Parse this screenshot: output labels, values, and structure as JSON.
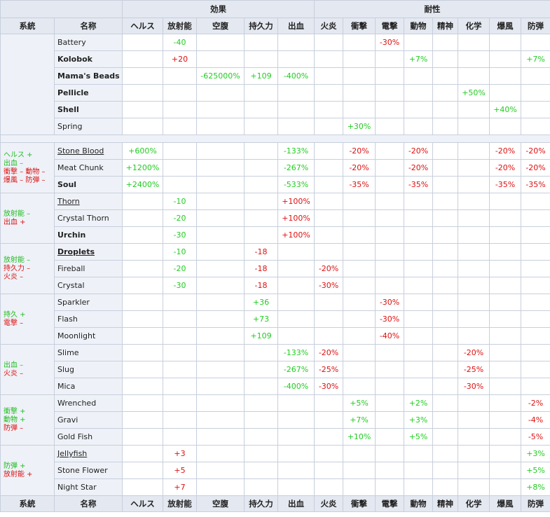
{
  "headers": {
    "effect_group": "効果",
    "resist_group": "耐性",
    "columns": [
      "系統",
      "名称",
      "ヘルス",
      "放射能",
      "空腹",
      "持久力",
      "出血",
      "火炎",
      "衝撃",
      "電撃",
      "動物",
      "精神",
      "化学",
      "爆風",
      "防弾"
    ]
  },
  "groups": [
    {
      "label": [],
      "rows": [
        {
          "name": "Battery",
          "bold": false,
          "underline": false,
          "vals": [
            "",
            "-40",
            "",
            "",
            "",
            "",
            "",
            "-30%",
            "",
            "",
            "",
            "",
            ""
          ]
        },
        {
          "name": "Kolobok",
          "bold": true,
          "underline": false,
          "vals": [
            "",
            "+20",
            "",
            "",
            "",
            "",
            "",
            "",
            "+7%",
            "",
            "",
            "",
            "+7%"
          ]
        },
        {
          "name": "Mama's Beads",
          "bold": true,
          "underline": false,
          "vals": [
            "",
            "",
            "-625000%",
            "+109",
            "-400%",
            "",
            "",
            "",
            "",
            "",
            "",
            "",
            ""
          ]
        },
        {
          "name": "Pellicle",
          "bold": true,
          "underline": false,
          "vals": [
            "",
            "",
            "",
            "",
            "",
            "",
            "",
            "",
            "",
            "",
            "+50%",
            "",
            ""
          ]
        },
        {
          "name": "Shell",
          "bold": true,
          "underline": false,
          "vals": [
            "",
            "",
            "",
            "",
            "",
            "",
            "",
            "",
            "",
            "",
            "",
            "+40%",
            ""
          ]
        },
        {
          "name": "Spring",
          "bold": false,
          "underline": false,
          "vals": [
            "",
            "",
            "",
            "",
            "",
            "",
            "+30%",
            "",
            "",
            "",
            "",
            "",
            ""
          ]
        }
      ]
    },
    {
      "spacer": true
    },
    {
      "label": [
        {
          "t": "ヘルス +",
          "c": "g"
        },
        {
          "t": "出血 –",
          "c": "g"
        },
        {
          "t": "衝撃 – 動物 –",
          "c": "r"
        },
        {
          "t": "爆風 – 防弾 –",
          "c": "r"
        }
      ],
      "rows": [
        {
          "name": "Stone Blood",
          "bold": false,
          "underline": true,
          "vals": [
            "+600%",
            "",
            "",
            "",
            "-133%",
            "",
            "-20%",
            "",
            "-20%",
            "",
            "",
            "-20%",
            "-20%"
          ]
        },
        {
          "name": "Meat Chunk",
          "bold": false,
          "underline": false,
          "vals": [
            "+1200%",
            "",
            "",
            "",
            "-267%",
            "",
            "-20%",
            "",
            "-20%",
            "",
            "",
            "-20%",
            "-20%"
          ]
        },
        {
          "name": "Soul",
          "bold": true,
          "underline": false,
          "vals": [
            "+2400%",
            "",
            "",
            "",
            "-533%",
            "",
            "-35%",
            "",
            "-35%",
            "",
            "",
            "-35%",
            "-35%"
          ]
        }
      ]
    },
    {
      "label": [
        {
          "t": "放射能 –",
          "c": "g"
        },
        {
          "t": "出血 +",
          "c": "r"
        }
      ],
      "rows": [
        {
          "name": "Thorn",
          "bold": false,
          "underline": true,
          "vals": [
            "",
            "-10",
            "",
            "",
            "+100%",
            "",
            "",
            "",
            "",
            "",
            "",
            "",
            ""
          ]
        },
        {
          "name": "Crystal Thorn",
          "bold": false,
          "underline": false,
          "vals": [
            "",
            "-20",
            "",
            "",
            "+100%",
            "",
            "",
            "",
            "",
            "",
            "",
            "",
            ""
          ]
        },
        {
          "name": "Urchin",
          "bold": true,
          "underline": false,
          "vals": [
            "",
            "-30",
            "",
            "",
            "+100%",
            "",
            "",
            "",
            "",
            "",
            "",
            "",
            ""
          ]
        }
      ]
    },
    {
      "label": [
        {
          "t": "放射能 –",
          "c": "g"
        },
        {
          "t": "持久力 –",
          "c": "r"
        },
        {
          "t": "火炎 –",
          "c": "r"
        }
      ],
      "rows": [
        {
          "name": "Droplets",
          "bold": true,
          "underline": true,
          "vals": [
            "",
            "-10",
            "",
            "-18",
            "",
            "",
            "",
            "",
            "",
            "",
            "",
            "",
            ""
          ]
        },
        {
          "name": "Fireball",
          "bold": false,
          "underline": false,
          "vals": [
            "",
            "-20",
            "",
            "-18",
            "",
            "-20%",
            "",
            "",
            "",
            "",
            "",
            "",
            ""
          ]
        },
        {
          "name": "Crystal",
          "bold": false,
          "underline": false,
          "vals": [
            "",
            "-30",
            "",
            "-18",
            "",
            "-30%",
            "",
            "",
            "",
            "",
            "",
            "",
            ""
          ]
        }
      ]
    },
    {
      "label": [
        {
          "t": "持久 +",
          "c": "g"
        },
        {
          "t": "電撃 –",
          "c": "r"
        }
      ],
      "rows": [
        {
          "name": "Sparkler",
          "bold": false,
          "underline": false,
          "vals": [
            "",
            "",
            "",
            "+36",
            "",
            "",
            "",
            "-30%",
            "",
            "",
            "",
            "",
            ""
          ]
        },
        {
          "name": "Flash",
          "bold": false,
          "underline": false,
          "vals": [
            "",
            "",
            "",
            "+73",
            "",
            "",
            "",
            "-30%",
            "",
            "",
            "",
            "",
            ""
          ]
        },
        {
          "name": "Moonlight",
          "bold": false,
          "underline": false,
          "vals": [
            "",
            "",
            "",
            "+109",
            "",
            "",
            "",
            "-40%",
            "",
            "",
            "",
            "",
            ""
          ]
        }
      ]
    },
    {
      "label": [
        {
          "t": "出血 –",
          "c": "g"
        },
        {
          "t": "火炎 –",
          "c": "r"
        }
      ],
      "rows": [
        {
          "name": "Slime",
          "bold": false,
          "underline": false,
          "vals": [
            "",
            "",
            "",
            "",
            "-133%",
            "-20%",
            "",
            "",
            "",
            "",
            "-20%",
            "",
            ""
          ]
        },
        {
          "name": "Slug",
          "bold": false,
          "underline": false,
          "vals": [
            "",
            "",
            "",
            "",
            "-267%",
            "-25%",
            "",
            "",
            "",
            "",
            "-25%",
            "",
            ""
          ]
        },
        {
          "name": "Mica",
          "bold": false,
          "underline": false,
          "vals": [
            "",
            "",
            "",
            "",
            "-400%",
            "-30%",
            "",
            "",
            "",
            "",
            "-30%",
            "",
            ""
          ]
        }
      ]
    },
    {
      "label": [
        {
          "t": "衝撃 +",
          "c": "g"
        },
        {
          "t": "動物 +",
          "c": "g"
        },
        {
          "t": "防弾 –",
          "c": "r"
        }
      ],
      "rows": [
        {
          "name": "Wrenched",
          "bold": false,
          "underline": false,
          "vals": [
            "",
            "",
            "",
            "",
            "",
            "",
            "+5%",
            "",
            "+2%",
            "",
            "",
            "",
            "-2%"
          ]
        },
        {
          "name": "Gravi",
          "bold": false,
          "underline": false,
          "vals": [
            "",
            "",
            "",
            "",
            "",
            "",
            "+7%",
            "",
            "+3%",
            "",
            "",
            "",
            "-4%"
          ]
        },
        {
          "name": "Gold Fish",
          "bold": false,
          "underline": false,
          "vals": [
            "",
            "",
            "",
            "",
            "",
            "",
            "+10%",
            "",
            "+5%",
            "",
            "",
            "",
            "-5%"
          ]
        }
      ]
    },
    {
      "label": [
        {
          "t": "防弾 +",
          "c": "g"
        },
        {
          "t": "放射能 +",
          "c": "r"
        }
      ],
      "rows": [
        {
          "name": "Jellyfish",
          "bold": false,
          "underline": true,
          "vals": [
            "",
            "+3",
            "",
            "",
            "",
            "",
            "",
            "",
            "",
            "",
            "",
            "",
            "+3%"
          ]
        },
        {
          "name": "Stone Flower",
          "bold": false,
          "underline": false,
          "vals": [
            "",
            "+5",
            "",
            "",
            "",
            "",
            "",
            "",
            "",
            "",
            "",
            "",
            "+5%"
          ]
        },
        {
          "name": "Night Star",
          "bold": false,
          "underline": false,
          "vals": [
            "",
            "+7",
            "",
            "",
            "",
            "",
            "",
            "",
            "",
            "",
            "",
            "",
            "+8%"
          ]
        }
      ]
    }
  ],
  "colors": {
    "positive": "#22cc22",
    "negative": "#dd1111",
    "header_bg": "#e4e8f0",
    "side_bg": "#eef2f8",
    "border": "#c7cfdc"
  }
}
